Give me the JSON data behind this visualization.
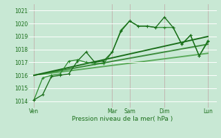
{
  "xlabel": "Pression niveau de la mer( hPa )",
  "bg_color": "#c8e8d4",
  "grid_color": "#b0d8bc",
  "ylim": [
    1013.5,
    1021.5
  ],
  "yticks": [
    1014,
    1015,
    1016,
    1017,
    1018,
    1019,
    1020,
    1021
  ],
  "xtick_labels": [
    "Ven",
    "Mar",
    "Sam",
    "Dim",
    "Lun"
  ],
  "xtick_positions": [
    0,
    4.5,
    5.5,
    7.5,
    10.0
  ],
  "vline_positions": [
    0,
    4.5,
    5.5,
    7.5,
    10.0
  ],
  "xlim": [
    -0.3,
    10.5
  ],
  "series": [
    {
      "x": [
        0.0,
        0.5,
        1.0,
        1.5,
        2.0,
        2.5,
        3.0,
        3.5,
        4.0,
        4.5,
        5.0,
        5.5,
        6.0,
        6.5,
        7.0,
        7.5,
        8.0,
        8.5,
        9.0,
        9.5,
        10.0
      ],
      "y": [
        1014.1,
        1014.5,
        1015.9,
        1016.0,
        1016.1,
        1017.1,
        1017.8,
        1017.0,
        1017.1,
        1017.8,
        1019.4,
        1020.2,
        1019.8,
        1019.8,
        1019.7,
        1020.5,
        1019.7,
        1018.4,
        1019.1,
        1017.5,
        1018.6
      ],
      "color": "#1a6e1a",
      "lw": 1.0,
      "marker": "+",
      "ms": 3.5,
      "zorder": 5
    },
    {
      "x": [
        0.0,
        0.5,
        1.0,
        1.5,
        2.0,
        2.5,
        3.0,
        3.5,
        4.0,
        4.5,
        5.0,
        5.5,
        6.0,
        6.5,
        7.0,
        7.5,
        8.0,
        8.5,
        9.0,
        9.5,
        10.0
      ],
      "y": [
        1014.1,
        1015.8,
        1016.0,
        1016.1,
        1017.1,
        1017.2,
        1017.0,
        1016.9,
        1016.9,
        1017.8,
        1019.5,
        1020.2,
        1019.8,
        1019.8,
        1019.7,
        1019.7,
        1019.7,
        1018.4,
        1019.1,
        1017.5,
        1018.7
      ],
      "color": "#2a8a2a",
      "lw": 0.9,
      "marker": "+",
      "ms": 3.0,
      "zorder": 4
    },
    {
      "x": [
        0.0,
        10.0
      ],
      "y": [
        1016.0,
        1019.0
      ],
      "color": "#1a6e1a",
      "lw": 1.4,
      "marker": null,
      "ms": 0,
      "zorder": 3
    },
    {
      "x": [
        0.0,
        10.0
      ],
      "y": [
        1016.0,
        1018.4
      ],
      "color": "#3a8a3a",
      "lw": 1.4,
      "marker": null,
      "ms": 0,
      "zorder": 2
    },
    {
      "x": [
        0.0,
        10.0
      ],
      "y": [
        1016.0,
        1017.7
      ],
      "color": "#5aaa5a",
      "lw": 1.4,
      "marker": null,
      "ms": 0,
      "zorder": 1
    }
  ]
}
